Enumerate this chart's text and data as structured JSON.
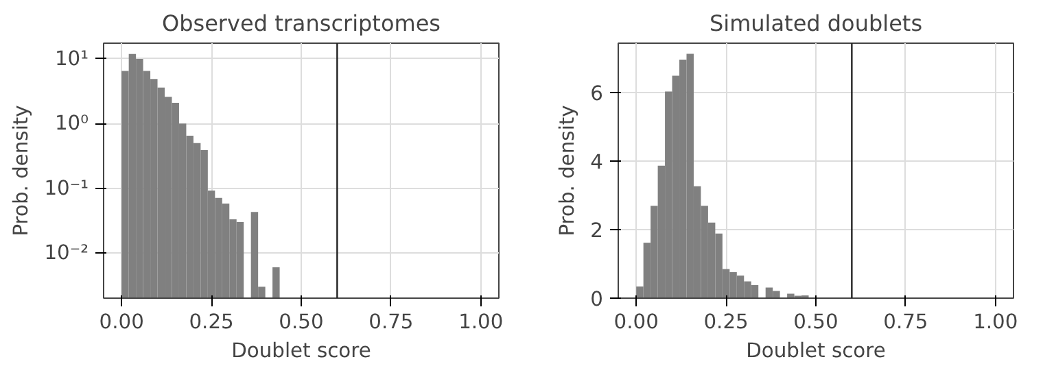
{
  "chart_data": [
    {
      "type": "histogram",
      "title": "Observed transcriptomes",
      "xlabel": "Doublet score",
      "ylabel": "Prob. density",
      "log": "y",
      "grid": true,
      "color": "#808080",
      "bins": [
        0,
        0.02,
        0.04,
        0.06,
        0.08,
        0.1,
        0.12,
        0.14,
        0.16,
        0.18,
        0.2,
        0.22,
        0.24,
        0.26,
        0.28,
        0.3,
        0.32,
        0.34,
        0.36,
        0.38,
        0.4,
        0.42,
        0.44
      ],
      "values": [
        6.5,
        11.9,
        10,
        6.5,
        4.9,
        3.6,
        2.6,
        2.1,
        1.0,
        0.65,
        0.5,
        0.39,
        0.092,
        0.071,
        0.058,
        0.033,
        0.03,
        null,
        0.043,
        0.003,
        null,
        0.006
      ],
      "xlim": [
        -0.05,
        1.05
      ],
      "xticks": [
        {
          "value": 0,
          "label": "0.00"
        },
        {
          "value": 0.25,
          "label": "0.25"
        },
        {
          "value": 0.5,
          "label": "0.50"
        },
        {
          "value": 0.75,
          "label": "0.75"
        },
        {
          "value": 1,
          "label": "1.00"
        }
      ],
      "ylim": [
        0.002,
        17.5
      ],
      "yticks": [
        {
          "value": 10,
          "label": "10¹"
        },
        {
          "value": 1,
          "label": "10⁰"
        },
        {
          "value": 0.1,
          "label": "10⁻¹"
        },
        {
          "value": 0.01,
          "label": "10⁻²"
        }
      ],
      "ref_lines": [
        {
          "axis": "x",
          "value": 0.6,
          "color": "#222222"
        }
      ]
    },
    {
      "type": "histogram",
      "title": "Simulated doublets",
      "xlabel": "Doublet score",
      "ylabel": "Prob. density",
      "grid": true,
      "color": "#808080",
      "bins": [
        0,
        0.02,
        0.04,
        0.06,
        0.08,
        0.1,
        0.12,
        0.14,
        0.16,
        0.18,
        0.2,
        0.22,
        0.24,
        0.26,
        0.28,
        0.3,
        0.32,
        0.34,
        0.36,
        0.38,
        0.4,
        0.42,
        0.44,
        0.46,
        0.48,
        0.5,
        0.52,
        0.54
      ],
      "values": [
        0.34,
        1.62,
        2.7,
        3.87,
        6.04,
        6.5,
        6.97,
        7.14,
        3.27,
        2.7,
        2.21,
        1.89,
        0.85,
        0.76,
        0.66,
        0.49,
        0.38,
        null,
        0.31,
        0.21,
        null,
        0.13,
        0.07,
        0.08,
        null,
        0.02,
        0.02
      ],
      "xlim": [
        -0.05,
        1.05
      ],
      "xticks": [
        {
          "value": 0,
          "label": "0.00"
        },
        {
          "value": 0.25,
          "label": "0.25"
        },
        {
          "value": 0.5,
          "label": "0.50"
        },
        {
          "value": 0.75,
          "label": "0.75"
        },
        {
          "value": 1,
          "label": "1.00"
        }
      ],
      "ylim": [
        0,
        7.45
      ],
      "yticks": [
        0,
        2,
        4,
        6
      ],
      "ref_lines": [
        {
          "axis": "x",
          "value": 0.6,
          "color": "#222222"
        }
      ]
    }
  ]
}
